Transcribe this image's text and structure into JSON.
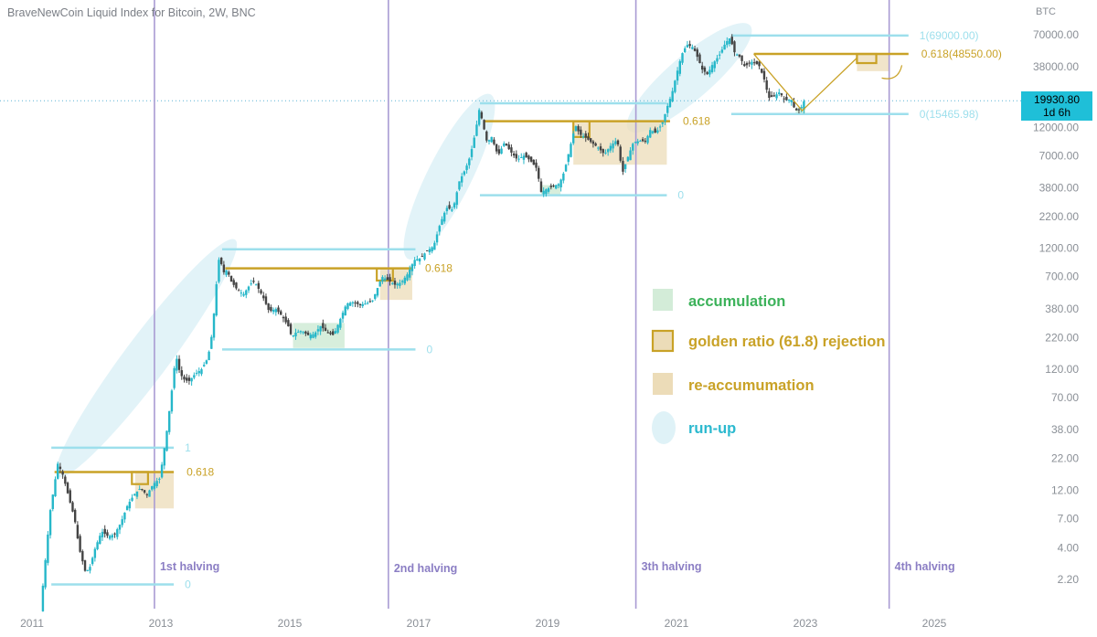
{
  "title": "BraveNewCoin Liquid Index for Bitcoin, 2W, BNC",
  "colors": {
    "bull": "#26b7c9",
    "bear": "#444444",
    "fib": "#9ddfec",
    "fib_text": "#9ddfec",
    "gold": "#c9a227",
    "gold_text": "#c9a227",
    "zone_fill": "#ecdcb8",
    "accum_fill": "#d3ecd8",
    "runup_fill": "#dff2f7",
    "halving": "#a99bd3",
    "halving_text": "#8b7ec4",
    "axis_text": "#8a8f96",
    "badge_bg": "#1fbfd8"
  },
  "price_badge": {
    "price": "19930.80",
    "countdown": "1d 6h"
  },
  "chart_data": {
    "type": "candlestick",
    "title": "BraveNewCoin Liquid Index for Bitcoin, 2W, BNC",
    "y_axis_unit": "BTC",
    "y_scale": "log",
    "y_ticks": [
      "70000.00",
      "38000.00",
      "12000.00",
      "7000.00",
      "3800.00",
      "2200.00",
      "1200.00",
      "700.00",
      "380.00",
      "220.00",
      "120.00",
      "70.00",
      "38.00",
      "22.00",
      "12.00",
      "7.00",
      "4.00",
      "2.20"
    ],
    "x_ticks": [
      "2011",
      "2013",
      "2015",
      "2017",
      "2019",
      "2021",
      "2023",
      "2025"
    ],
    "x_range": [
      2011.0,
      2025.3
    ],
    "y_range": [
      1.5,
      130000
    ],
    "last_price": 19930.8,
    "price_path": [
      [
        2011.15,
        1.2
      ],
      [
        2011.3,
        8
      ],
      [
        2011.42,
        20
      ],
      [
        2011.5,
        16
      ],
      [
        2011.6,
        10
      ],
      [
        2011.68,
        7
      ],
      [
        2011.75,
        4
      ],
      [
        2011.85,
        2.5
      ],
      [
        2011.92,
        2.8
      ],
      [
        2012.0,
        4
      ],
      [
        2012.1,
        5.5
      ],
      [
        2012.2,
        5
      ],
      [
        2012.3,
        5.2
      ],
      [
        2012.4,
        6.5
      ],
      [
        2012.5,
        9
      ],
      [
        2012.6,
        11
      ],
      [
        2012.7,
        12.5
      ],
      [
        2012.8,
        11
      ],
      [
        2012.9,
        13.5
      ],
      [
        2013.0,
        15
      ],
      [
        2013.05,
        22
      ],
      [
        2013.12,
        40
      ],
      [
        2013.2,
        90
      ],
      [
        2013.25,
        160
      ],
      [
        2013.3,
        120
      ],
      [
        2013.36,
        100
      ],
      [
        2013.45,
        95
      ],
      [
        2013.55,
        110
      ],
      [
        2013.65,
        120
      ],
      [
        2013.75,
        150
      ],
      [
        2013.82,
        250
      ],
      [
        2013.88,
        600
      ],
      [
        2013.93,
        1100
      ],
      [
        2013.98,
        750
      ],
      [
        2014.05,
        800
      ],
      [
        2014.1,
        650
      ],
      [
        2014.2,
        550
      ],
      [
        2014.3,
        500
      ],
      [
        2014.4,
        600
      ],
      [
        2014.45,
        640
      ],
      [
        2014.5,
        600
      ],
      [
        2014.6,
        480
      ],
      [
        2014.7,
        360
      ],
      [
        2014.8,
        380
      ],
      [
        2014.9,
        330
      ],
      [
        2015.0,
        270
      ],
      [
        2015.05,
        220
      ],
      [
        2015.1,
        240
      ],
      [
        2015.2,
        250
      ],
      [
        2015.3,
        230
      ],
      [
        2015.4,
        235
      ],
      [
        2015.5,
        275
      ],
      [
        2015.6,
        240
      ],
      [
        2015.7,
        230
      ],
      [
        2015.8,
        310
      ],
      [
        2015.9,
        420
      ],
      [
        2016.0,
        430
      ],
      [
        2016.1,
        410
      ],
      [
        2016.2,
        420
      ],
      [
        2016.3,
        440
      ],
      [
        2016.45,
        700
      ],
      [
        2016.55,
        650
      ],
      [
        2016.65,
        600
      ],
      [
        2016.75,
        630
      ],
      [
        2016.85,
        740
      ],
      [
        2016.95,
        960
      ],
      [
        2017.05,
        1000
      ],
      [
        2017.15,
        1150
      ],
      [
        2017.25,
        1250
      ],
      [
        2017.35,
        1900
      ],
      [
        2017.45,
        2600
      ],
      [
        2017.55,
        2500
      ],
      [
        2017.65,
        4300
      ],
      [
        2017.75,
        5500
      ],
      [
        2017.82,
        7000
      ],
      [
        2017.9,
        11000
      ],
      [
        2017.96,
        17000
      ],
      [
        2018.0,
        14000
      ],
      [
        2018.08,
        9000
      ],
      [
        2018.15,
        10000
      ],
      [
        2018.25,
        7000
      ],
      [
        2018.35,
        9000
      ],
      [
        2018.45,
        7500
      ],
      [
        2018.55,
        6500
      ],
      [
        2018.65,
        7000
      ],
      [
        2018.75,
        6400
      ],
      [
        2018.85,
        5500
      ],
      [
        2018.92,
        3500
      ],
      [
        2019.0,
        3700
      ],
      [
        2019.1,
        3900
      ],
      [
        2019.2,
        4100
      ],
      [
        2019.28,
        5200
      ],
      [
        2019.36,
        7900
      ],
      [
        2019.45,
        12500
      ],
      [
        2019.52,
        10500
      ],
      [
        2019.6,
        10000
      ],
      [
        2019.7,
        9000
      ],
      [
        2019.8,
        8200
      ],
      [
        2019.9,
        7200
      ],
      [
        2020.0,
        8500
      ],
      [
        2020.1,
        9500
      ],
      [
        2020.18,
        5000
      ],
      [
        2020.25,
        6500
      ],
      [
        2020.35,
        9000
      ],
      [
        2020.45,
        9300
      ],
      [
        2020.55,
        9200
      ],
      [
        2020.6,
        11500
      ],
      [
        2020.7,
        10800
      ],
      [
        2020.8,
        13000
      ],
      [
        2020.88,
        18000
      ],
      [
        2020.95,
        23000
      ],
      [
        2021.02,
        33000
      ],
      [
        2021.1,
        48000
      ],
      [
        2021.18,
        58000
      ],
      [
        2021.28,
        55000
      ],
      [
        2021.35,
        45000
      ],
      [
        2021.42,
        36000
      ],
      [
        2021.5,
        33000
      ],
      [
        2021.58,
        40000
      ],
      [
        2021.68,
        47000
      ],
      [
        2021.78,
        60000
      ],
      [
        2021.85,
        66000
      ],
      [
        2021.92,
        50000
      ],
      [
        2022.0,
        46000
      ],
      [
        2022.08,
        38000
      ],
      [
        2022.18,
        42000
      ],
      [
        2022.3,
        39000
      ],
      [
        2022.38,
        30000
      ],
      [
        2022.45,
        21000
      ],
      [
        2022.55,
        22000
      ],
      [
        2022.62,
        23500
      ],
      [
        2022.7,
        20000
      ],
      [
        2022.8,
        20500
      ],
      [
        2022.86,
        16500
      ],
      [
        2022.94,
        16800
      ],
      [
        2023.0,
        19930
      ]
    ],
    "halvings": [
      {
        "x": 2012.9,
        "label": "1st halving"
      },
      {
        "x": 2016.53,
        "label": "2nd halving"
      },
      {
        "x": 2020.37,
        "label": "3th halving"
      },
      {
        "x": 2024.3,
        "label": "4th halving"
      }
    ],
    "fib_levels": [
      {
        "x0": 2011.3,
        "x1": 2013.2,
        "y": 27,
        "label": "1"
      },
      {
        "x0": 2011.3,
        "x1": 2013.2,
        "y": 2.0,
        "label": "0"
      },
      {
        "x0": 2013.95,
        "x1": 2016.95,
        "y": 1180,
        "label": ""
      },
      {
        "x0": 2013.95,
        "x1": 2016.95,
        "y": 175,
        "label": "0"
      },
      {
        "x0": 2017.95,
        "x1": 2020.85,
        "y": 19000,
        "label": ""
      },
      {
        "x0": 2017.95,
        "x1": 2020.85,
        "y": 3300,
        "label": "0"
      },
      {
        "x0": 2021.85,
        "x1": 2024.6,
        "y": 69000,
        "label": "1(69000.00)"
      },
      {
        "x0": 2021.85,
        "x1": 2024.6,
        "y": 15465.98,
        "label": "0(15465.98)"
      }
    ],
    "golden_ratio_lines": [
      {
        "x0": 2011.35,
        "x1": 2013.2,
        "y": 17,
        "label": "0.618"
      },
      {
        "x0": 2014.0,
        "x1": 2016.9,
        "y": 820,
        "label": "0.618"
      },
      {
        "x0": 2018.0,
        "x1": 2020.9,
        "y": 13500,
        "label": "0.618"
      },
      {
        "x0": 2022.2,
        "x1": 2024.6,
        "y": 48550,
        "label": "0.618(48550.00)"
      }
    ],
    "rejection_boxes": [
      {
        "x0": 2012.55,
        "x1": 2012.8,
        "y0": 13.5,
        "y1": 17
      },
      {
        "x0": 2016.35,
        "x1": 2016.6,
        "y0": 650,
        "y1": 820
      },
      {
        "x0": 2019.4,
        "x1": 2019.65,
        "y0": 10000,
        "y1": 13500
      },
      {
        "x0": 2023.8,
        "x1": 2024.1,
        "y0": 42000,
        "y1": 48550
      }
    ],
    "reaccumulation_zones": [
      {
        "x0": 2012.6,
        "x1": 2013.2,
        "y0": 8.5,
        "y1": 17
      },
      {
        "x0": 2016.4,
        "x1": 2016.9,
        "y0": 450,
        "y1": 820
      },
      {
        "x0": 2019.4,
        "x1": 2020.85,
        "y0": 5900,
        "y1": 13500
      },
      {
        "x0": 2023.8,
        "x1": 2024.3,
        "y0": 35000,
        "y1": 48550
      }
    ],
    "accumulation_zones": [
      {
        "x0": 2015.05,
        "x1": 2015.85,
        "y0": 180,
        "y1": 290
      },
      {
        "x0": 2018.9,
        "x1": 2019.2,
        "y0": 3300,
        "y1": 4000
      },
      {
        "x0": 2022.85,
        "x1": 2023.0,
        "y0": 15500,
        "y1": 17500
      }
    ],
    "legend": [
      {
        "kind": "accumulation",
        "label": "accumulation"
      },
      {
        "kind": "rejection",
        "label": "golden ratio (61.8) rejection"
      },
      {
        "kind": "reaccumulation",
        "label": "re-accumumation"
      },
      {
        "kind": "runup",
        "label": "run-up"
      }
    ],
    "projection": [
      [
        2023.0,
        17000
      ],
      [
        2023.8,
        45000
      ]
    ]
  }
}
